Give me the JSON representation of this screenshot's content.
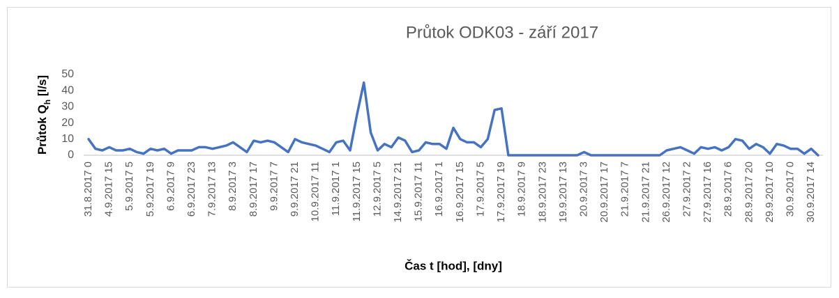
{
  "chart_data": {
    "type": "line",
    "title": "Průtok ODK03 - září 2017",
    "x_label": "Čas t [hod], [dny]",
    "y_label": {
      "main": "Průtok Q",
      "sub": "h",
      "unit": " [l/s]"
    },
    "ylim": [
      0,
      50
    ],
    "yticks": [
      0,
      10,
      20,
      30,
      40,
      50
    ],
    "grid": false,
    "categories": [
      "31.8.2017 0",
      null,
      null,
      "4.9.2017 15",
      null,
      null,
      "5.9.2017 5",
      null,
      null,
      "5.9.2017 19",
      null,
      null,
      "6.9.2017 9",
      null,
      null,
      "6.9.2017 23",
      null,
      null,
      "7.9.2017 13",
      null,
      null,
      "8.9.2017 3",
      null,
      null,
      "8.9.2017 17",
      null,
      null,
      "9.9.2017 7",
      null,
      null,
      "9.9.2017 21",
      null,
      null,
      "10.9.2017 11",
      null,
      null,
      "11.9.2017 1",
      null,
      null,
      "11.9.2017 15",
      null,
      null,
      "12.9.2017 5",
      null,
      null,
      "14.9.2017 21",
      null,
      null,
      "15.9.2017 11",
      null,
      null,
      "16.9.2017 1",
      null,
      null,
      "16.9.2017 15",
      null,
      null,
      "17.9.2017 5",
      null,
      null,
      "17.9.2017 19",
      null,
      null,
      "18.9.2017 9",
      null,
      null,
      "18.9.2017 23",
      null,
      null,
      "19.9.2017 13",
      null,
      null,
      "20.9.2017 3",
      null,
      null,
      "20.9.2017 17",
      null,
      null,
      "21.9.2017 7",
      null,
      null,
      "21.9.2017 21",
      null,
      null,
      "26.9.2017 12",
      null,
      null,
      "27.9.2017 2",
      null,
      null,
      "27.9.2017 16",
      null,
      null,
      "28.9.2017 6",
      null,
      null,
      "28.9.2017 20",
      null,
      null,
      "29.9.2017 10",
      null,
      null,
      "30.9.2017 0",
      null,
      null,
      "30.9.2017 14",
      null
    ],
    "series": [
      {
        "name": "Průtok",
        "color": "#4472c4",
        "values": [
          10,
          4,
          3,
          5,
          3,
          3,
          4,
          2,
          1,
          4,
          3,
          4,
          1,
          3,
          3,
          3,
          5,
          5,
          4,
          5,
          6,
          8,
          5,
          2,
          9,
          8,
          9,
          8,
          5,
          2,
          10,
          8,
          7,
          6,
          4,
          2,
          8,
          9,
          3,
          25,
          45,
          14,
          3,
          7,
          5,
          11,
          9,
          2,
          3,
          8,
          7,
          7,
          4,
          17,
          10,
          8,
          8,
          5,
          10,
          28,
          29,
          0,
          0,
          0,
          0,
          0,
          0,
          0,
          0,
          0,
          0,
          0,
          2,
          0,
          0,
          0,
          0,
          0,
          0,
          0,
          0,
          0,
          0,
          0,
          3,
          4,
          5,
          3,
          1,
          5,
          4,
          5,
          3,
          5,
          10,
          9,
          4,
          7,
          5,
          1,
          7,
          6,
          4,
          4,
          1,
          4,
          0
        ]
      }
    ]
  }
}
